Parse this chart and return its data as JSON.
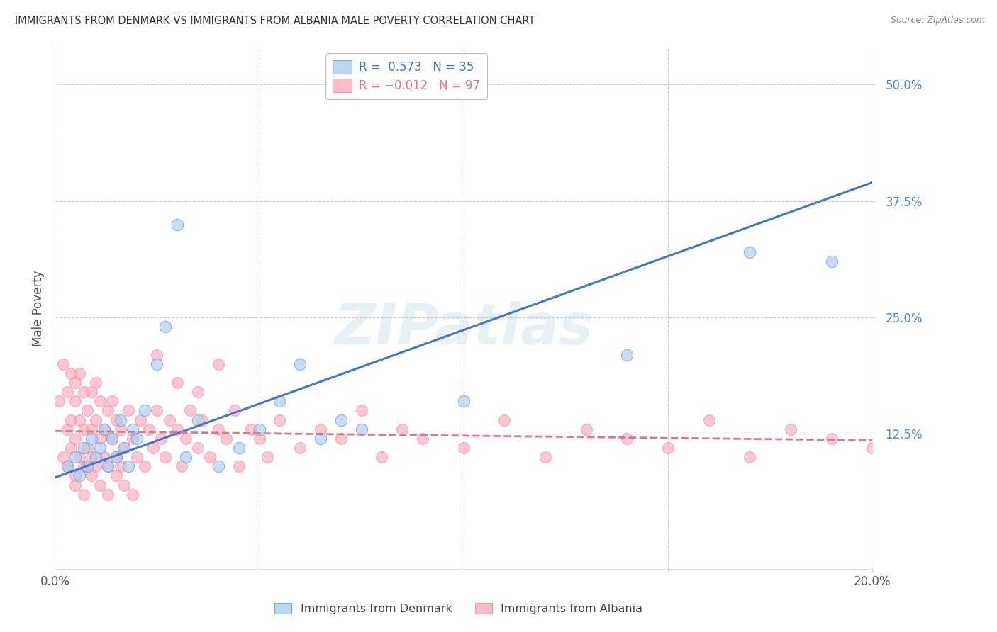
{
  "title": "IMMIGRANTS FROM DENMARK VS IMMIGRANTS FROM ALBANIA MALE POVERTY CORRELATION CHART",
  "source": "Source: ZipAtlas.com",
  "ylabel": "Male Poverty",
  "ytick_labels": [
    "50.0%",
    "37.5%",
    "25.0%",
    "12.5%"
  ],
  "ytick_values": [
    0.5,
    0.375,
    0.25,
    0.125
  ],
  "xlim": [
    0.0,
    0.2
  ],
  "ylim": [
    -0.02,
    0.54
  ],
  "watermark": "ZIPatlas",
  "denmark_color": "#AACCEE",
  "albania_color": "#FFAABB",
  "denmark_edge_color": "#6699CC",
  "albania_edge_color": "#EE8899",
  "denmark_line_color": "#4477CC",
  "albania_line_color": "#DD7788",
  "background_color": "#FFFFFF",
  "grid_color": "#CCCCCC",
  "title_color": "#333333",
  "source_color": "#888888",
  "yaxis_color": "#5588BB",
  "dk_x": [
    0.003,
    0.005,
    0.006,
    0.007,
    0.008,
    0.009,
    0.01,
    0.011,
    0.012,
    0.013,
    0.014,
    0.015,
    0.016,
    0.017,
    0.018,
    0.019,
    0.02,
    0.022,
    0.025,
    0.027,
    0.03,
    0.032,
    0.035,
    0.04,
    0.045,
    0.05,
    0.055,
    0.06,
    0.065,
    0.07,
    0.075,
    0.1,
    0.14,
    0.17,
    0.19
  ],
  "dk_y": [
    0.09,
    0.1,
    0.08,
    0.11,
    0.09,
    0.12,
    0.1,
    0.11,
    0.13,
    0.09,
    0.12,
    0.1,
    0.14,
    0.11,
    0.09,
    0.13,
    0.12,
    0.15,
    0.2,
    0.24,
    0.35,
    0.1,
    0.14,
    0.09,
    0.11,
    0.13,
    0.16,
    0.2,
    0.12,
    0.14,
    0.13,
    0.16,
    0.21,
    0.32,
    0.31
  ],
  "al_x": [
    0.001,
    0.002,
    0.002,
    0.003,
    0.003,
    0.003,
    0.004,
    0.004,
    0.004,
    0.005,
    0.005,
    0.005,
    0.005,
    0.006,
    0.006,
    0.006,
    0.007,
    0.007,
    0.007,
    0.008,
    0.008,
    0.008,
    0.009,
    0.009,
    0.009,
    0.01,
    0.01,
    0.01,
    0.011,
    0.011,
    0.012,
    0.012,
    0.013,
    0.013,
    0.014,
    0.014,
    0.015,
    0.015,
    0.016,
    0.016,
    0.017,
    0.018,
    0.019,
    0.02,
    0.021,
    0.022,
    0.023,
    0.024,
    0.025,
    0.026,
    0.027,
    0.028,
    0.03,
    0.031,
    0.032,
    0.033,
    0.035,
    0.036,
    0.038,
    0.04,
    0.042,
    0.044,
    0.045,
    0.048,
    0.05,
    0.052,
    0.055,
    0.06,
    0.065,
    0.07,
    0.075,
    0.08,
    0.085,
    0.09,
    0.1,
    0.11,
    0.12,
    0.13,
    0.14,
    0.15,
    0.16,
    0.17,
    0.18,
    0.19,
    0.2,
    0.025,
    0.03,
    0.035,
    0.04,
    0.005,
    0.007,
    0.009,
    0.011,
    0.013,
    0.015,
    0.017,
    0.019
  ],
  "al_y": [
    0.16,
    0.1,
    0.2,
    0.13,
    0.17,
    0.09,
    0.14,
    0.19,
    0.11,
    0.16,
    0.12,
    0.08,
    0.18,
    0.1,
    0.14,
    0.19,
    0.09,
    0.13,
    0.17,
    0.11,
    0.15,
    0.09,
    0.13,
    0.17,
    0.1,
    0.14,
    0.18,
    0.09,
    0.12,
    0.16,
    0.1,
    0.13,
    0.09,
    0.15,
    0.12,
    0.16,
    0.1,
    0.14,
    0.09,
    0.13,
    0.11,
    0.15,
    0.12,
    0.1,
    0.14,
    0.09,
    0.13,
    0.11,
    0.15,
    0.12,
    0.1,
    0.14,
    0.13,
    0.09,
    0.12,
    0.15,
    0.11,
    0.14,
    0.1,
    0.13,
    0.12,
    0.15,
    0.09,
    0.13,
    0.12,
    0.1,
    0.14,
    0.11,
    0.13,
    0.12,
    0.15,
    0.1,
    0.13,
    0.12,
    0.11,
    0.14,
    0.1,
    0.13,
    0.12,
    0.11,
    0.14,
    0.1,
    0.13,
    0.12,
    0.11,
    0.21,
    0.18,
    0.17,
    0.2,
    0.07,
    0.06,
    0.08,
    0.07,
    0.06,
    0.08,
    0.07,
    0.06
  ]
}
